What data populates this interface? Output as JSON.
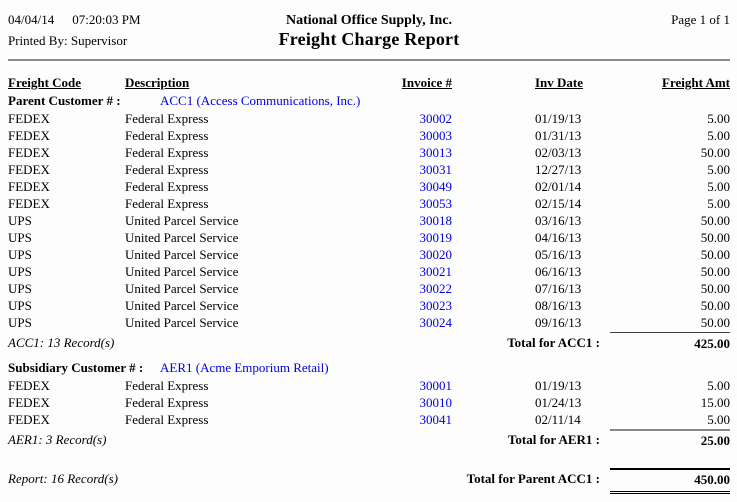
{
  "page_header": {
    "date": "04/04/14",
    "time": "07:20:03 PM",
    "printed_by": "Printed By: Supervisor",
    "company": "National Office Supply, Inc.",
    "title": "Freight Charge Report",
    "page": "Page 1 of  1"
  },
  "columns": {
    "freight_code": "Freight Code",
    "description": "Description",
    "invoice": "Invoice #",
    "inv_date": "Inv Date",
    "freight_amt": "Freight Amt"
  },
  "groups": [
    {
      "label": "Parent Customer # :",
      "customer": "ACC1 (Access Communications, Inc.)",
      "rows": [
        {
          "code": "FEDEX",
          "description": "Federal Express",
          "invoice": "30002",
          "date": "01/19/13",
          "amount": "5.00"
        },
        {
          "code": "FEDEX",
          "description": "Federal Express",
          "invoice": "30003",
          "date": "01/31/13",
          "amount": "5.00"
        },
        {
          "code": "FEDEX",
          "description": "Federal Express",
          "invoice": "30013",
          "date": "02/03/13",
          "amount": "50.00"
        },
        {
          "code": "FEDEX",
          "description": "Federal Express",
          "invoice": "30031",
          "date": "12/27/13",
          "amount": "5.00"
        },
        {
          "code": "FEDEX",
          "description": "Federal Express",
          "invoice": "30049",
          "date": "02/01/14",
          "amount": "5.00"
        },
        {
          "code": "FEDEX",
          "description": "Federal Express",
          "invoice": "30053",
          "date": "02/15/14",
          "amount": "5.00"
        },
        {
          "code": "UPS",
          "description": "United Parcel Service",
          "invoice": "30018",
          "date": "03/16/13",
          "amount": "50.00"
        },
        {
          "code": "UPS",
          "description": "United Parcel Service",
          "invoice": "30019",
          "date": "04/16/13",
          "amount": "50.00"
        },
        {
          "code": "UPS",
          "description": "United Parcel Service",
          "invoice": "30020",
          "date": "05/16/13",
          "amount": "50.00"
        },
        {
          "code": "UPS",
          "description": "United Parcel Service",
          "invoice": "30021",
          "date": "06/16/13",
          "amount": "50.00"
        },
        {
          "code": "UPS",
          "description": "United Parcel Service",
          "invoice": "30022",
          "date": "07/16/13",
          "amount": "50.00"
        },
        {
          "code": "UPS",
          "description": "United Parcel Service",
          "invoice": "30023",
          "date": "08/16/13",
          "amount": "50.00"
        },
        {
          "code": "UPS",
          "description": "United Parcel Service",
          "invoice": "30024",
          "date": "09/16/13",
          "amount": "50.00"
        }
      ],
      "footer": {
        "records": "ACC1: 13 Record(s)",
        "total_label": "Total for ACC1 :",
        "total": "425.00"
      }
    },
    {
      "label": "Subsidiary Customer # :",
      "customer": "AER1 (Acme Emporium Retail)",
      "rows": [
        {
          "code": "FEDEX",
          "description": "Federal Express",
          "invoice": "30001",
          "date": "01/19/13",
          "amount": "5.00"
        },
        {
          "code": "FEDEX",
          "description": "Federal Express",
          "invoice": "30010",
          "date": "01/24/13",
          "amount": "15.00"
        },
        {
          "code": "FEDEX",
          "description": "Federal Express",
          "invoice": "30041",
          "date": "02/11/14",
          "amount": "5.00"
        }
      ],
      "footer": {
        "records": "AER1: 3 Record(s)",
        "total_label": "Total for AER1 :",
        "total": "25.00"
      }
    }
  ],
  "report_footer": {
    "records": "Report: 16 Record(s)",
    "total_label": "Total for Parent ACC1 :",
    "total": "450.00"
  },
  "colors": {
    "link_blue": "#0000E0",
    "rule_gray": "#8C8C8C"
  }
}
